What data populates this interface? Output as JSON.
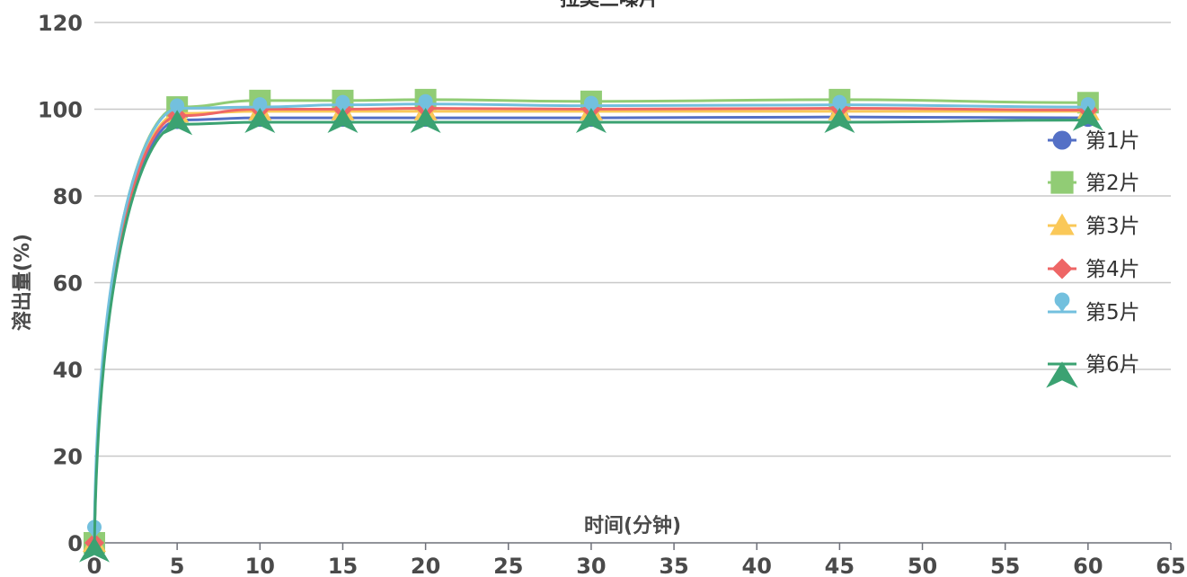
{
  "chart_data": {
    "type": "line",
    "title": "拉莫三嗪片",
    "xlabel": "时间(分钟)",
    "ylabel": "溶出量(%)",
    "xlim": [
      0,
      65
    ],
    "ylim": [
      0,
      120
    ],
    "x_ticks": [
      0,
      5,
      10,
      15,
      20,
      25,
      30,
      35,
      40,
      45,
      50,
      55,
      60,
      65
    ],
    "y_ticks": [
      0,
      20,
      40,
      60,
      80,
      100,
      120
    ],
    "grid": "horizontal",
    "legend_position": "right",
    "x": [
      0,
      5,
      10,
      15,
      20,
      30,
      45,
      60
    ],
    "series": [
      {
        "name": "第1片",
        "color": "#5470c6",
        "marker": "circle",
        "values": [
          0,
          97.5,
          98.0,
          98.0,
          98.0,
          98.0,
          98.2,
          98.0
        ]
      },
      {
        "name": "第2片",
        "color": "#91cc75",
        "marker": "square",
        "values": [
          0,
          100.5,
          102.0,
          102.0,
          102.2,
          101.8,
          102.2,
          101.5
        ]
      },
      {
        "name": "第3片",
        "color": "#fac858",
        "marker": "triangle",
        "values": [
          0,
          99.0,
          99.5,
          99.5,
          99.5,
          99.5,
          99.5,
          99.5
        ]
      },
      {
        "name": "第4片",
        "color": "#ee6666",
        "marker": "diamond",
        "values": [
          0,
          98.5,
          100.0,
          100.0,
          100.2,
          100.0,
          100.2,
          99.8
        ]
      },
      {
        "name": "第5片",
        "color": "#73c0de",
        "marker": "pin",
        "values": [
          3,
          100.2,
          100.5,
          101.0,
          101.2,
          100.8,
          101.0,
          100.5
        ]
      },
      {
        "name": "第6片",
        "color": "#3ba272",
        "marker": "arrow",
        "values": [
          -2,
          96.5,
          97.0,
          97.0,
          97.0,
          97.0,
          97.0,
          97.5
        ]
      }
    ]
  }
}
